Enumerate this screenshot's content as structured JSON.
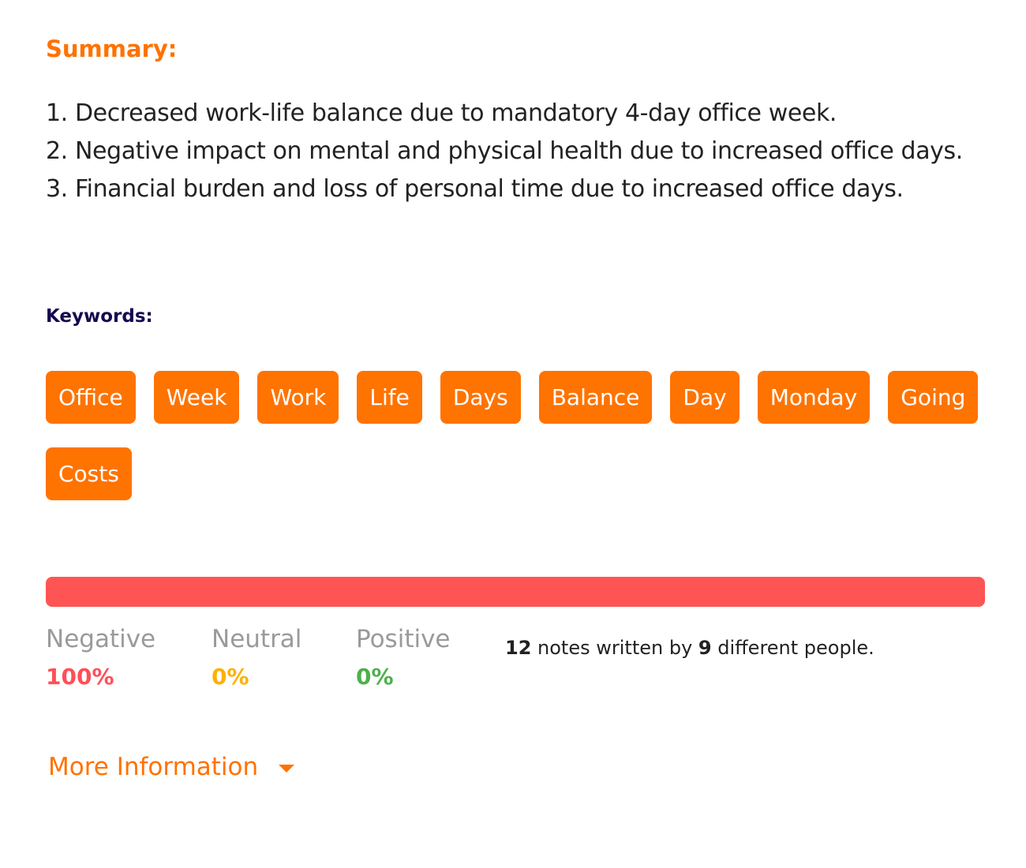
{
  "summary": {
    "heading": "Summary:",
    "items": [
      "1. Decreased work-life balance due to mandatory 4-day office week.",
      "2. Negative impact on mental and physical health due to increased office days.",
      "3. Financial burden and loss of personal time due to increased office days."
    ]
  },
  "keywords": {
    "heading": "Keywords:",
    "items": [
      "Office",
      "Week",
      "Work",
      "Life",
      "Days",
      "Balance",
      "Day",
      "Monday",
      "Going",
      "Costs"
    ]
  },
  "sentiment": {
    "negative_fraction": 1.0,
    "bar_color": "#ff5454",
    "negative": {
      "label": "Negative",
      "value": "100%",
      "color": "#ff4f58"
    },
    "neutral": {
      "label": "Neutral",
      "value": "0%",
      "color": "#ffb000"
    },
    "positive": {
      "label": "Positive",
      "value": "0%",
      "color": "#4cb04a"
    }
  },
  "notes": {
    "count": "12",
    "text_mid": " notes written by ",
    "people": "9",
    "text_end": " different people."
  },
  "more_info": {
    "label": "More Information",
    "icon": "caret-down-icon"
  },
  "colors": {
    "accent": "#ff7300",
    "keywords_heading": "#140a4f"
  }
}
